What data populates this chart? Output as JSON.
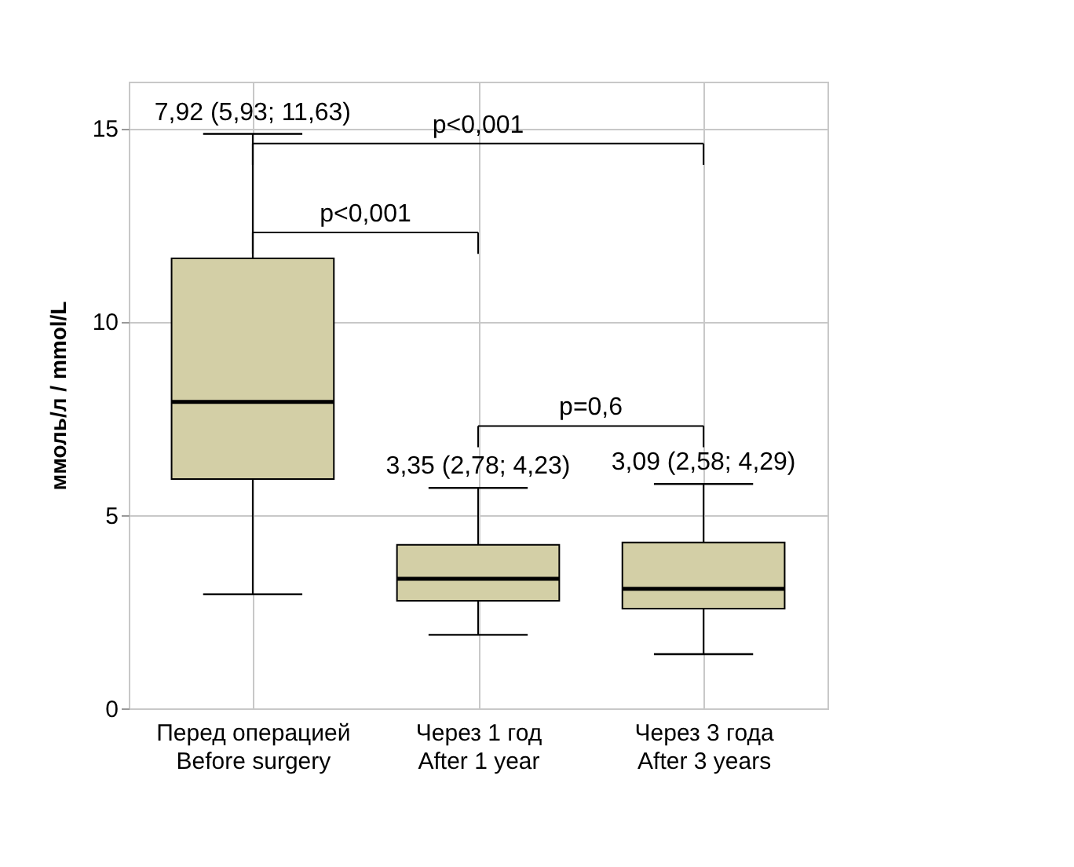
{
  "chart_data": {
    "type": "box",
    "ylabel": "ммоль/л / mmol/L",
    "categories": [
      "Перед операцией\nBefore surgery",
      "Через 1 год\nAfter 1 year",
      "Через 3 года\nAfter 3 years"
    ],
    "boxes": [
      {
        "low": 2.95,
        "q1": 5.93,
        "median": 7.92,
        "q3": 11.63,
        "high": 14.85
      },
      {
        "low": 1.9,
        "q1": 2.78,
        "median": 3.35,
        "q3": 4.23,
        "high": 5.7
      },
      {
        "low": 1.4,
        "q1": 2.58,
        "median": 3.09,
        "q3": 4.29,
        "high": 5.8
      }
    ],
    "color": "#d3cfa6",
    "ylim": [
      0,
      16.2
    ],
    "yticks": [
      0,
      5,
      10,
      15
    ],
    "grid": true,
    "annotations": [
      {
        "text": "7,92 (5,93; 11,63)",
        "x": "Перед операцией\nBefore surgery",
        "y": 14.85
      },
      {
        "text": "3,35 (2,78; 4,23)",
        "x": "Через 1 год\nAfter 1 year",
        "y": 5.7
      },
      {
        "text": "3,09 (2,58; 4,29)",
        "x": "Через 3 года\nAfter 3 years",
        "y": 5.8
      },
      "p<0,001",
      "p<0,001",
      "p=0,6"
    ]
  }
}
